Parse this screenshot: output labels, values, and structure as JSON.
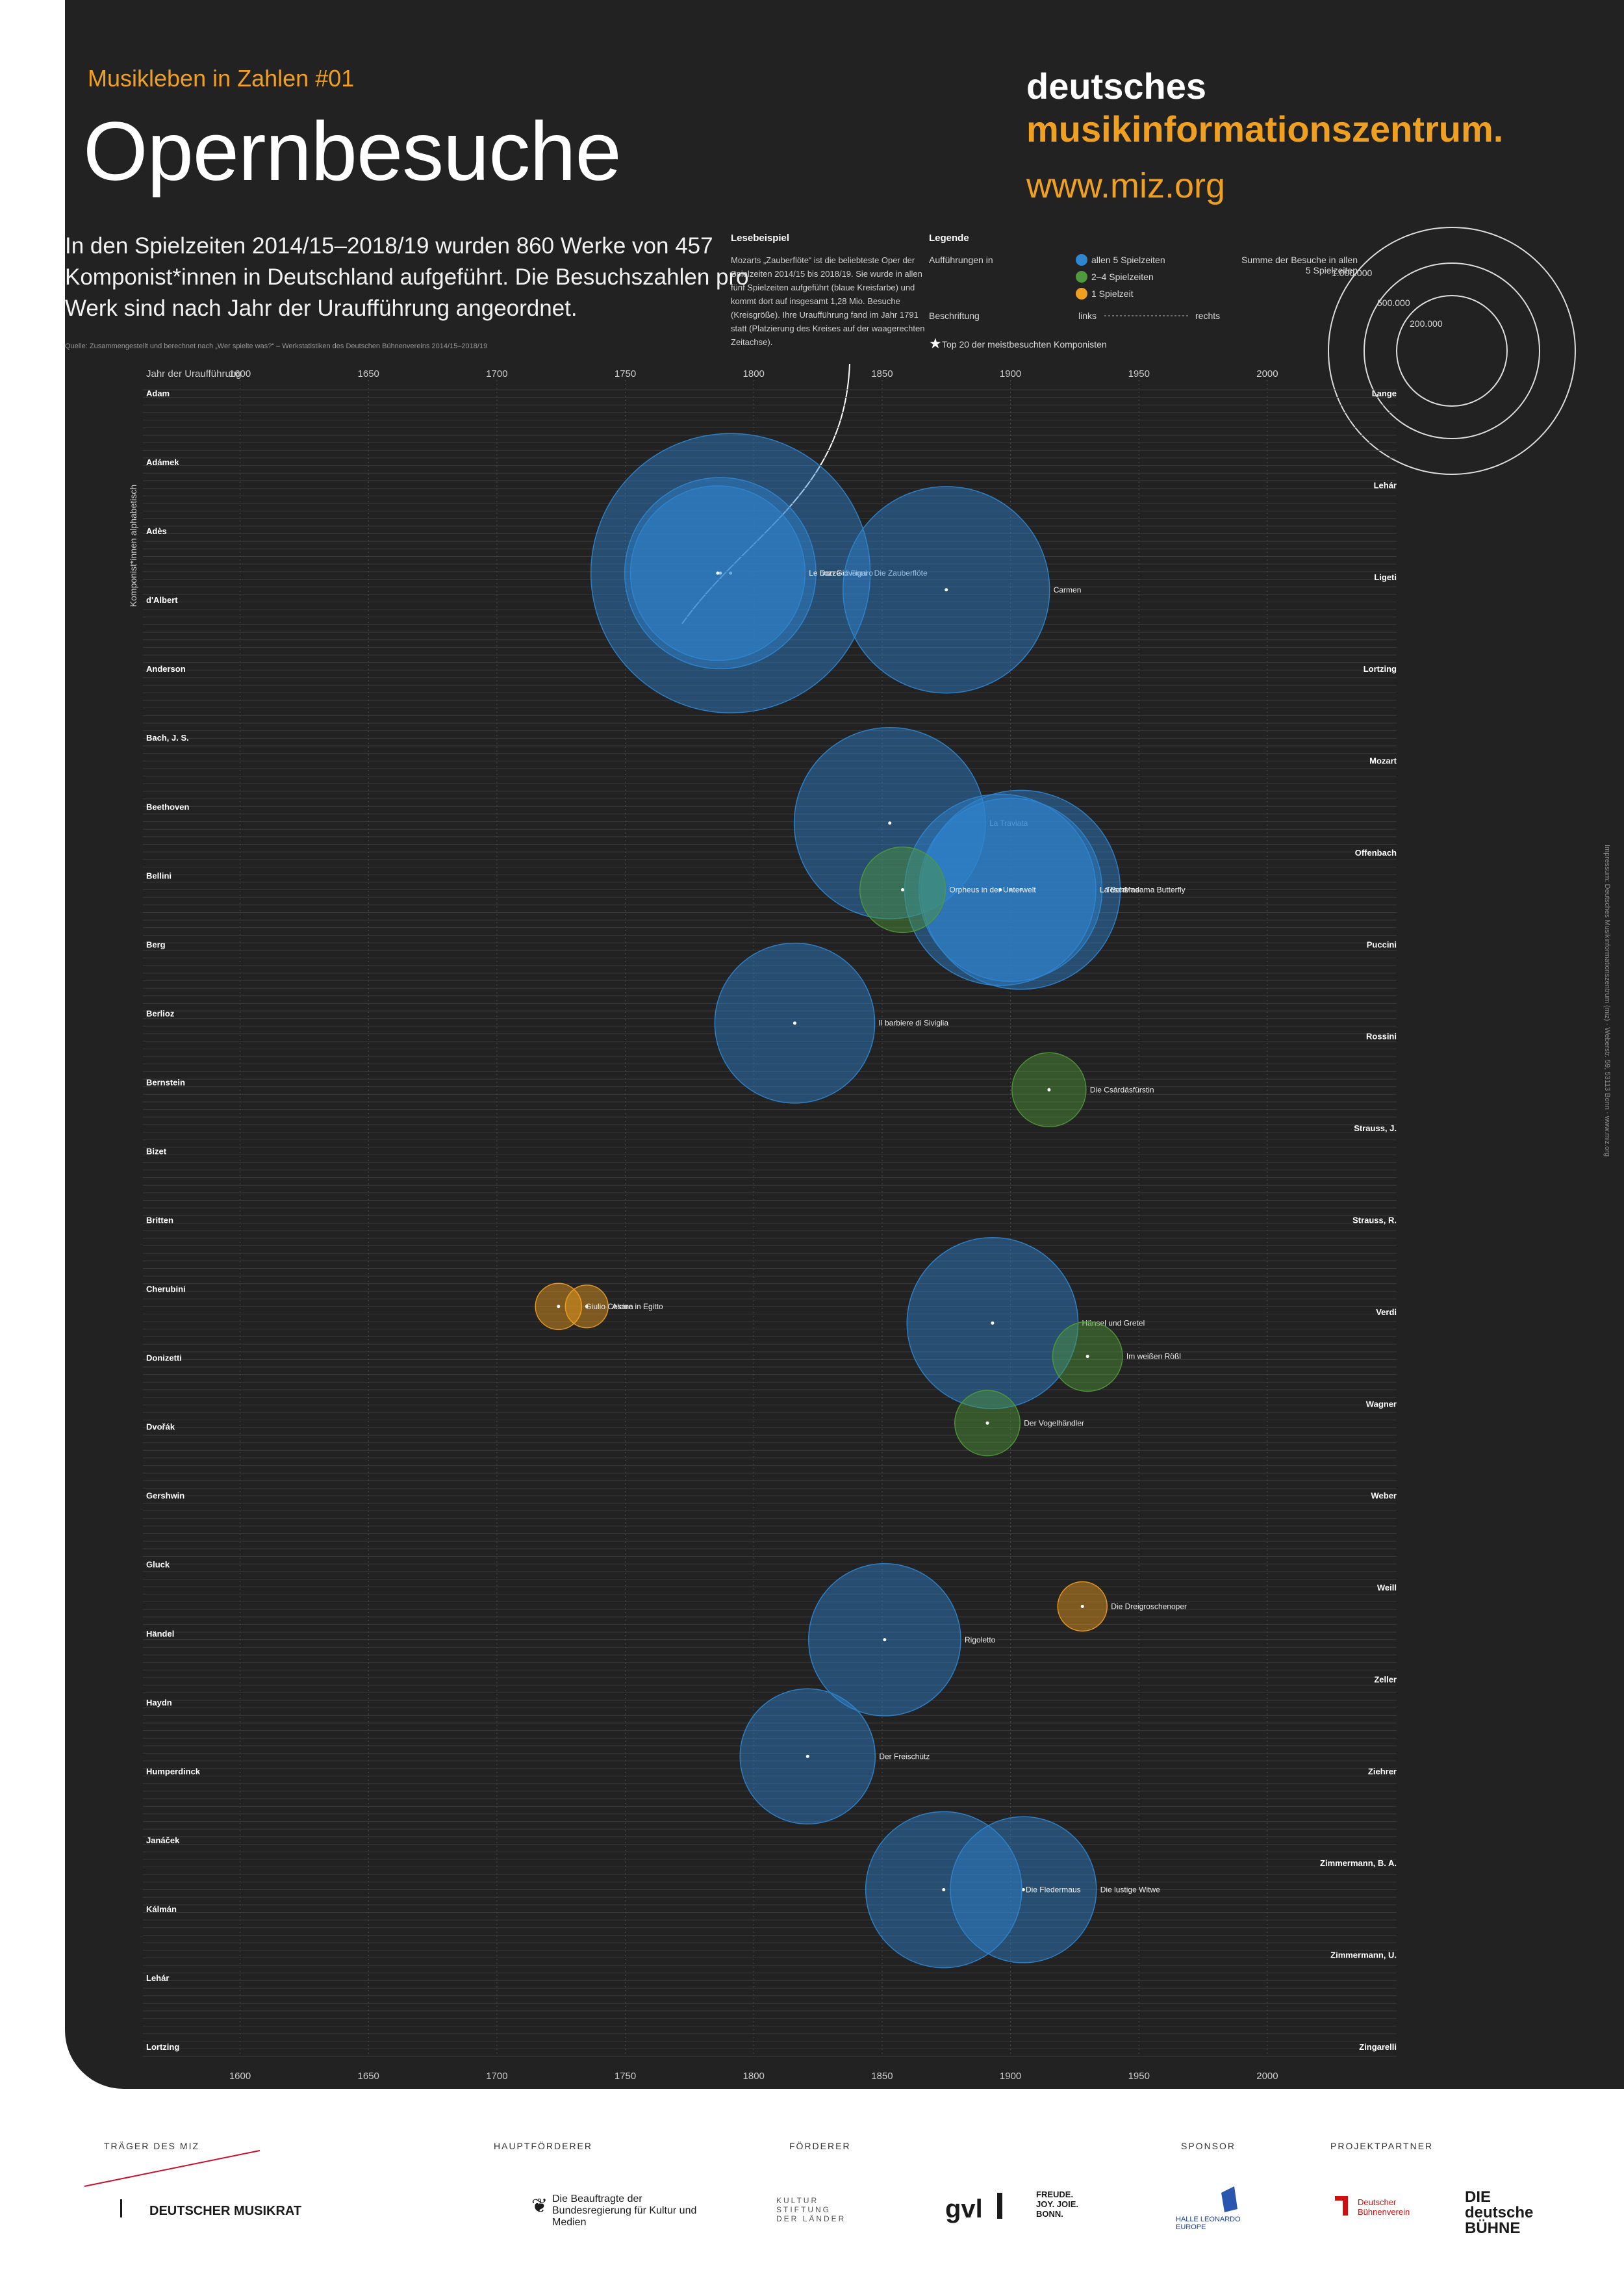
{
  "header": {
    "kicker": "Musikleben in Zahlen #01",
    "title": "Opernbesuche",
    "brand_line1": "deutsches",
    "brand_line2": "musikinformationszentrum.",
    "brand_url": "www.miz.org",
    "intro": "In den Spielzeiten 2014/15–2018/19 wurden 860 Werke von 457 Komponist*innen in Deutschland aufgeführt. Die Besuchszahlen pro Werk sind nach Jahr der Uraufführung angeordnet.",
    "source": "Quelle: Zusammengestellt und berechnet nach „Wer spielte was?“ – Werkstatistiken des Deutschen Bühnenvereins 2014/15–2018/19"
  },
  "reading_example": {
    "title": "Lesebeispiel",
    "text": "Mozarts „Zauberflöte“ ist die beliebteste Oper der Spielzeiten 2014/15 bis 2018/19. Sie wurde in allen fünf Spielzeiten aufgeführt (blaue Kreisfarbe) und kommt dort auf insgesamt 1,28 Mio. Besuche (Kreisgröße). Ihre Uraufführung fand im Jahr 1791 statt (Platzierung des Kreises auf der waagerechten Zeitachse)."
  },
  "legend": {
    "title": "Legende",
    "performed_in": "Aufführungen in",
    "items": [
      {
        "label": "allen 5 Spielzeiten",
        "color": "#2f86d0"
      },
      {
        "label": "2–4 Spielzeiten",
        "color": "#4f9a3a"
      },
      {
        "label": "1 Spielzeit",
        "color": "#f0a020"
      }
    ],
    "label_heading": "Beschriftung",
    "label_left": "links",
    "label_right": "rechts",
    "sum_heading": "Summe der Besuche in allen 5 Spielzeiten",
    "size_values": [
      "1.000.000",
      "500.000",
      "200.000"
    ],
    "top20": "Top 20 der meistbesuchten Komponisten"
  },
  "chart_data": {
    "type": "scatter",
    "xlabel": "Jahr der Uraufführung",
    "ylabel": "Komponist*innen alphabetisch",
    "xlim": [
      1590,
      2020
    ],
    "x_ticks": [
      "1600",
      "1650",
      "1700",
      "1750",
      "1800",
      "1850",
      "1900",
      "1950",
      "2000"
    ],
    "size_unit": "Summe der Besuche in allen 5 Spielzeiten",
    "series": [
      {
        "name": "allen 5 Spielzeiten",
        "color": "#2f86d0",
        "points": [
          {
            "label": "Die Zauberflöte",
            "x": 1791,
            "y": 0.11,
            "value": 1280000
          },
          {
            "label": "Don Giovanni",
            "x": 1787,
            "y": 0.11,
            "value": 600000
          },
          {
            "label": "Le nozze di Figaro",
            "x": 1786,
            "y": 0.11,
            "value": 500000
          },
          {
            "label": "Carmen",
            "x": 1875,
            "y": 0.12,
            "value": 700000
          },
          {
            "label": "La Traviata",
            "x": 1853,
            "y": 0.26,
            "value": 600000
          },
          {
            "label": "Madama Butterfly",
            "x": 1904,
            "y": 0.3,
            "value": 650000
          },
          {
            "label": "Tosca",
            "x": 1900,
            "y": 0.3,
            "value": 550000
          },
          {
            "label": "La Bohème",
            "x": 1896,
            "y": 0.3,
            "value": 600000
          },
          {
            "label": "Il barbiere di Siviglia",
            "x": 1816,
            "y": 0.38,
            "value": 420000
          },
          {
            "label": "Hänsel und Gretel",
            "x": 1893,
            "y": 0.56,
            "value": 480000
          },
          {
            "label": "Rigoletto",
            "x": 1851,
            "y": 0.75,
            "value": 380000
          },
          {
            "label": "Der Freischütz",
            "x": 1821,
            "y": 0.82,
            "value": 300000
          },
          {
            "label": "Die lustige Witwe",
            "x": 1905,
            "y": 0.9,
            "value": 350000
          },
          {
            "label": "Die Fledermaus",
            "x": 1874,
            "y": 0.9,
            "value": 400000
          }
        ]
      },
      {
        "name": "2–4 Spielzeiten",
        "color": "#4f9a3a",
        "points": [
          {
            "label": "Orpheus in der Unterwelt",
            "x": 1858,
            "y": 0.3,
            "value": 120000
          },
          {
            "label": "Die Csárdásfürstin",
            "x": 1915,
            "y": 0.42,
            "value": 90000
          },
          {
            "label": "Der Vogelhändler",
            "x": 1891,
            "y": 0.62,
            "value": 70000
          },
          {
            "label": "Im weißen Rößl",
            "x": 1930,
            "y": 0.58,
            "value": 80000
          }
        ]
      },
      {
        "name": "1 Spielzeit",
        "color": "#f0a020",
        "points": [
          {
            "label": "Die Dreigroschenoper",
            "x": 1928,
            "y": 0.73,
            "value": 40000
          },
          {
            "label": "Alcina",
            "x": 1735,
            "y": 0.55,
            "value": 30000
          },
          {
            "label": "Giulio Cesare in Egitto",
            "x": 1724,
            "y": 0.55,
            "value": 35000
          }
        ]
      }
    ],
    "composers_left": [
      "Adam",
      "Adámek",
      "Adès",
      "d'Albert",
      "Anderson",
      "Bach, J. S.",
      "Beethoven",
      "Bellini",
      "Berg",
      "Berlioz",
      "Bernstein",
      "Bizet",
      "Britten",
      "Cherubini",
      "Donizetti",
      "Dvořák",
      "Gershwin",
      "Gluck",
      "Händel",
      "Haydn",
      "Humperdinck",
      "Janáček",
      "Kálmán",
      "Lehár",
      "Lortzing"
    ],
    "composers_right": [
      "Lange",
      "Lehár",
      "Ligeti",
      "Lortzing",
      "Mozart",
      "Offenbach",
      "Puccini",
      "Rossini",
      "Strauss, J.",
      "Strauss, R.",
      "Verdi",
      "Wagner",
      "Weber",
      "Weill",
      "Zeller",
      "Ziehrer",
      "Zimmermann, B. A.",
      "Zimmermann, U.",
      "Zingarelli"
    ]
  },
  "sidebar_note": "Impressum: Deutsches Musikinformationszentrum (miz) · Weberstr. 59, 53113 Bonn · www.miz.org",
  "sponsors": {
    "traeger_label": "TRÄGER DES MIZ",
    "traeger_name": "DEUTSCHER MUSIKRAT",
    "haupt_label": "HAUPTFÖRDERER",
    "haupt_name": "Die Beauftragte der Bundesregierung für Kultur und Medien",
    "foerderer_label": "FÖRDERER",
    "foerderer_names": [
      "KULTUR STIFTUNG DER LÄNDER",
      "gvl",
      "FREUDE. JOY. JOIE. BONN."
    ],
    "sponsor_label": "SPONSOR",
    "sponsor_name": "HALLE LEONARDO EUROPE",
    "partner_label": "PROJEKTPARTNER",
    "partner_names": [
      "Deutscher Bühnenverein",
      "DIE deutsche BÜHNE"
    ]
  }
}
